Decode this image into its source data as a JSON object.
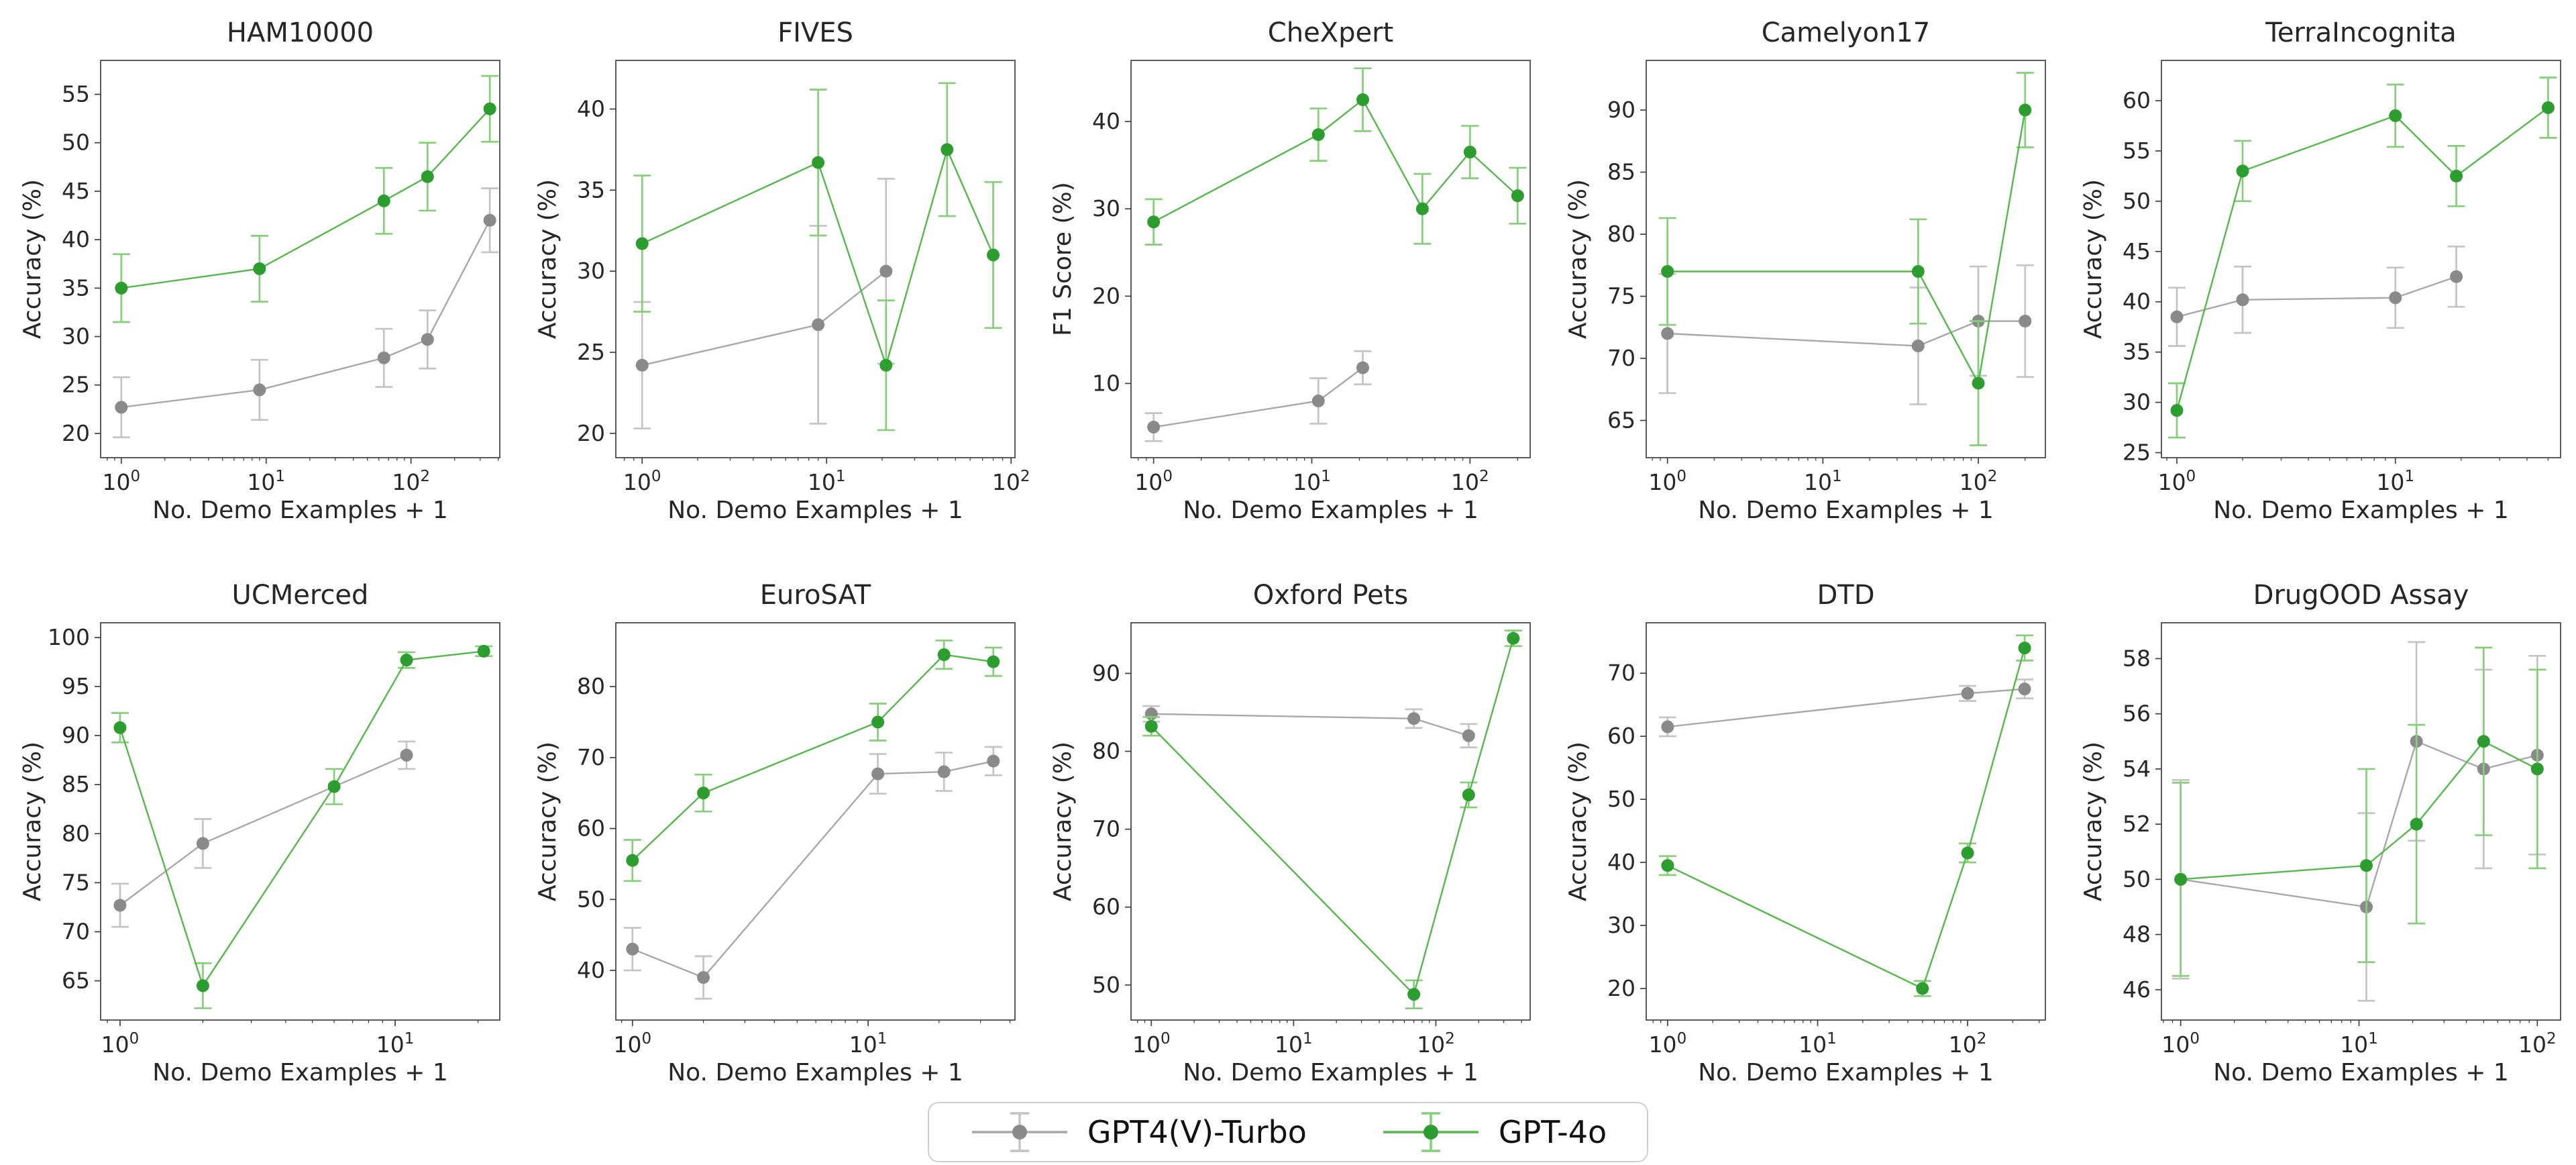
{
  "figure": {
    "background": "#ffffff",
    "spine_color": "#3f3f3f"
  },
  "legend": {
    "position": "bottom-center",
    "items": [
      {
        "label": "GPT4(V)-Turbo",
        "marker_color": "#8a8a8a",
        "line_color": "#a8a8a8",
        "error_color": "#c4c4c4"
      },
      {
        "label": "GPT-4o",
        "marker_color": "#2e9d30",
        "line_color": "#55b84a",
        "error_color": "#85cf78"
      }
    ]
  },
  "chart_data": [
    {
      "type": "line",
      "title": "HAM10000",
      "xlabel": "No. Demo Examples + 1",
      "ylabel": "Accuracy (%)",
      "x_scale": "log",
      "xlim": [
        0.72,
        410
      ],
      "xticks": [
        1,
        10,
        100
      ],
      "ylim": [
        17.5,
        58.5
      ],
      "yticks": [
        20,
        25,
        30,
        35,
        40,
        45,
        50,
        55
      ],
      "grid": false,
      "error_bars": true,
      "series": [
        {
          "name": "GPT4(V)-Turbo",
          "x": [
            1,
            9,
            65,
            130,
            350
          ],
          "y": [
            22.7,
            24.5,
            27.8,
            29.7,
            42.0
          ],
          "yerr": [
            3.1,
            3.1,
            3.0,
            3.0,
            3.3
          ]
        },
        {
          "name": "GPT-4o",
          "x": [
            1,
            9,
            65,
            130,
            350
          ],
          "y": [
            35.0,
            37.0,
            44.0,
            46.5,
            53.5
          ],
          "yerr": [
            3.5,
            3.4,
            3.4,
            3.5,
            3.4
          ]
        }
      ]
    },
    {
      "type": "line",
      "title": "FIVES",
      "xlabel": "No. Demo Examples + 1",
      "ylabel": "Accuracy (%)",
      "x_scale": "log",
      "xlim": [
        0.72,
        105
      ],
      "xticks": [
        1,
        10,
        100
      ],
      "ylim": [
        18.5,
        43
      ],
      "yticks": [
        20,
        25,
        30,
        35,
        40
      ],
      "grid": false,
      "error_bars": true,
      "series": [
        {
          "name": "GPT4(V)-Turbo",
          "x": [
            1,
            9,
            21
          ],
          "y": [
            24.2,
            26.7,
            30.0
          ],
          "yerr": [
            3.9,
            6.1,
            5.7
          ]
        },
        {
          "name": "GPT-4o",
          "x": [
            1,
            9,
            21,
            45,
            80
          ],
          "y": [
            31.7,
            36.7,
            24.2,
            37.5,
            31.0
          ],
          "yerr": [
            4.2,
            4.5,
            4.0,
            4.1,
            4.5
          ]
        }
      ]
    },
    {
      "type": "line",
      "title": "CheXpert",
      "xlabel": "No. Demo Examples + 1",
      "ylabel": "F1 Score (%)",
      "x_scale": "log",
      "xlim": [
        0.72,
        240
      ],
      "xticks": [
        1,
        10,
        100
      ],
      "ylim": [
        1.5,
        47
      ],
      "yticks": [
        10,
        20,
        30,
        40
      ],
      "grid": false,
      "error_bars": true,
      "series": [
        {
          "name": "GPT4(V)-Turbo",
          "x": [
            1,
            11,
            21
          ],
          "y": [
            5.0,
            8.0,
            11.8
          ],
          "yerr": [
            1.6,
            2.6,
            1.9
          ]
        },
        {
          "name": "GPT-4o",
          "x": [
            1,
            11,
            21,
            50,
            100,
            200
          ],
          "y": [
            28.5,
            38.5,
            42.5,
            30.0,
            36.5,
            31.5
          ],
          "yerr": [
            2.6,
            3.0,
            3.6,
            4.0,
            3.0,
            3.2
          ]
        }
      ]
    },
    {
      "type": "line",
      "title": "Camelyon17",
      "xlabel": "No. Demo Examples + 1",
      "ylabel": "Accuracy (%)",
      "x_scale": "log",
      "xlim": [
        0.73,
        270
      ],
      "xticks": [
        1,
        10,
        100
      ],
      "ylim": [
        62,
        94
      ],
      "yticks": [
        65,
        70,
        75,
        80,
        85,
        90
      ],
      "grid": false,
      "error_bars": true,
      "series": [
        {
          "name": "GPT4(V)-Turbo",
          "x": [
            1,
            41,
            100,
            200
          ],
          "y": [
            72.0,
            71.0,
            73.0,
            73.0
          ],
          "yerr": [
            4.8,
            4.7,
            4.4,
            4.5
          ]
        },
        {
          "name": "GPT-4o",
          "x": [
            1,
            41,
            100,
            200
          ],
          "y": [
            77.0,
            77.0,
            68.0,
            90.0
          ],
          "yerr": [
            4.3,
            4.2,
            5.0,
            3.0
          ]
        }
      ]
    },
    {
      "type": "line",
      "title": "TerraIncognita",
      "xlabel": "No. Demo Examples + 1",
      "ylabel": "Accuracy (%)",
      "x_scale": "log",
      "xlim": [
        0.85,
        57
      ],
      "xticks": [
        1,
        10
      ],
      "ylim": [
        24.5,
        64
      ],
      "yticks": [
        25,
        30,
        35,
        40,
        45,
        50,
        55,
        60
      ],
      "grid": false,
      "error_bars": true,
      "series": [
        {
          "name": "GPT4(V)-Turbo",
          "x": [
            1,
            2,
            10,
            19
          ],
          "y": [
            38.5,
            40.2,
            40.4,
            42.5
          ],
          "yerr": [
            2.9,
            3.3,
            3.0,
            3.0
          ]
        },
        {
          "name": "GPT-4o",
          "x": [
            1,
            2,
            10,
            19,
            50
          ],
          "y": [
            29.2,
            53.0,
            58.5,
            52.5,
            59.3
          ],
          "yerr": [
            2.7,
            3.0,
            3.1,
            3.0,
            3.0
          ]
        }
      ]
    },
    {
      "type": "line",
      "title": "UCMerced",
      "xlabel": "No. Demo Examples + 1",
      "ylabel": "Accuracy (%)",
      "x_scale": "log",
      "xlim": [
        0.85,
        24
      ],
      "xticks": [
        1,
        10
      ],
      "ylim": [
        61,
        101.5
      ],
      "yticks": [
        65,
        70,
        75,
        80,
        85,
        90,
        95,
        100
      ],
      "grid": false,
      "error_bars": true,
      "series": [
        {
          "name": "GPT4(V)-Turbo",
          "x": [
            1,
            2,
            11
          ],
          "y": [
            72.7,
            79.0,
            88.0
          ],
          "yerr": [
            2.2,
            2.5,
            1.4
          ]
        },
        {
          "name": "GPT-4o",
          "x": [
            1,
            2,
            6,
            11,
            21
          ],
          "y": [
            90.8,
            64.5,
            84.8,
            97.7,
            98.6
          ],
          "yerr": [
            1.5,
            2.3,
            1.8,
            0.8,
            0.5
          ]
        }
      ]
    },
    {
      "type": "line",
      "title": "EuroSAT",
      "xlabel": "No. Demo Examples + 1",
      "ylabel": "Accuracy (%)",
      "x_scale": "log",
      "xlim": [
        0.85,
        42
      ],
      "xticks": [
        1,
        10
      ],
      "ylim": [
        33,
        89
      ],
      "yticks": [
        40,
        50,
        60,
        70,
        80
      ],
      "grid": false,
      "error_bars": true,
      "series": [
        {
          "name": "GPT4(V)-Turbo",
          "x": [
            1,
            2,
            11,
            21,
            34
          ],
          "y": [
            43.0,
            39.0,
            67.7,
            68.0,
            69.5
          ],
          "yerr": [
            3.0,
            3.0,
            2.8,
            2.7,
            2.0
          ]
        },
        {
          "name": "GPT-4o",
          "x": [
            1,
            2,
            11,
            21,
            34
          ],
          "y": [
            55.5,
            65.0,
            75.0,
            84.5,
            83.5
          ],
          "yerr": [
            2.9,
            2.6,
            2.6,
            2.0,
            2.0
          ]
        }
      ]
    },
    {
      "type": "line",
      "title": "Oxford Pets",
      "xlabel": "No. Demo Examples + 1",
      "ylabel": "Accuracy (%)",
      "x_scale": "log",
      "xlim": [
        0.72,
        460
      ],
      "xticks": [
        1,
        10,
        100
      ],
      "ylim": [
        45.5,
        96.5
      ],
      "yticks": [
        50,
        60,
        70,
        80,
        90
      ],
      "grid": false,
      "error_bars": true,
      "series": [
        {
          "name": "GPT4(V)-Turbo",
          "x": [
            1,
            70,
            170
          ],
          "y": [
            84.8,
            84.2,
            82.0
          ],
          "yerr": [
            1.0,
            1.2,
            1.5
          ]
        },
        {
          "name": "GPT-4o",
          "x": [
            1,
            70,
            170,
            350
          ],
          "y": [
            83.2,
            48.8,
            74.4,
            94.5
          ],
          "yerr": [
            1.2,
            1.8,
            1.6,
            1.0
          ]
        }
      ]
    },
    {
      "type": "line",
      "title": "DTD",
      "xlabel": "No. Demo Examples + 1",
      "ylabel": "Accuracy (%)",
      "x_scale": "log",
      "xlim": [
        0.72,
        330
      ],
      "xticks": [
        1,
        10,
        100
      ],
      "ylim": [
        15,
        78
      ],
      "yticks": [
        20,
        30,
        40,
        50,
        60,
        70
      ],
      "grid": false,
      "error_bars": true,
      "series": [
        {
          "name": "GPT4(V)-Turbo",
          "x": [
            1,
            100,
            240
          ],
          "y": [
            61.5,
            66.8,
            67.5
          ],
          "yerr": [
            1.5,
            1.2,
            1.5
          ]
        },
        {
          "name": "GPT-4o",
          "x": [
            1,
            50,
            100,
            240
          ],
          "y": [
            39.5,
            20.0,
            41.5,
            74.0
          ],
          "yerr": [
            1.5,
            1.2,
            1.5,
            2.0
          ]
        }
      ]
    },
    {
      "type": "line",
      "title": "DrugOOD Assay",
      "xlabel": "No. Demo Examples + 1",
      "ylabel": "Accuracy (%)",
      "x_scale": "log",
      "xlim": [
        0.78,
        135
      ],
      "xticks": [
        1,
        10,
        100
      ],
      "ylim": [
        44.9,
        59.3
      ],
      "yticks": [
        46,
        48,
        50,
        52,
        54,
        56,
        58
      ],
      "grid": false,
      "error_bars": true,
      "series": [
        {
          "name": "GPT4(V)-Turbo",
          "x": [
            1,
            11,
            21,
            50,
            100
          ],
          "y": [
            50.0,
            49.0,
            55.0,
            54.0,
            54.5
          ],
          "yerr": [
            3.6,
            3.4,
            3.6,
            3.6,
            3.6
          ]
        },
        {
          "name": "GPT-4o",
          "x": [
            1,
            11,
            21,
            50,
            100
          ],
          "y": [
            50.0,
            50.5,
            52.0,
            55.0,
            54.0
          ],
          "yerr": [
            3.5,
            3.5,
            3.6,
            3.4,
            3.6
          ]
        }
      ]
    }
  ]
}
